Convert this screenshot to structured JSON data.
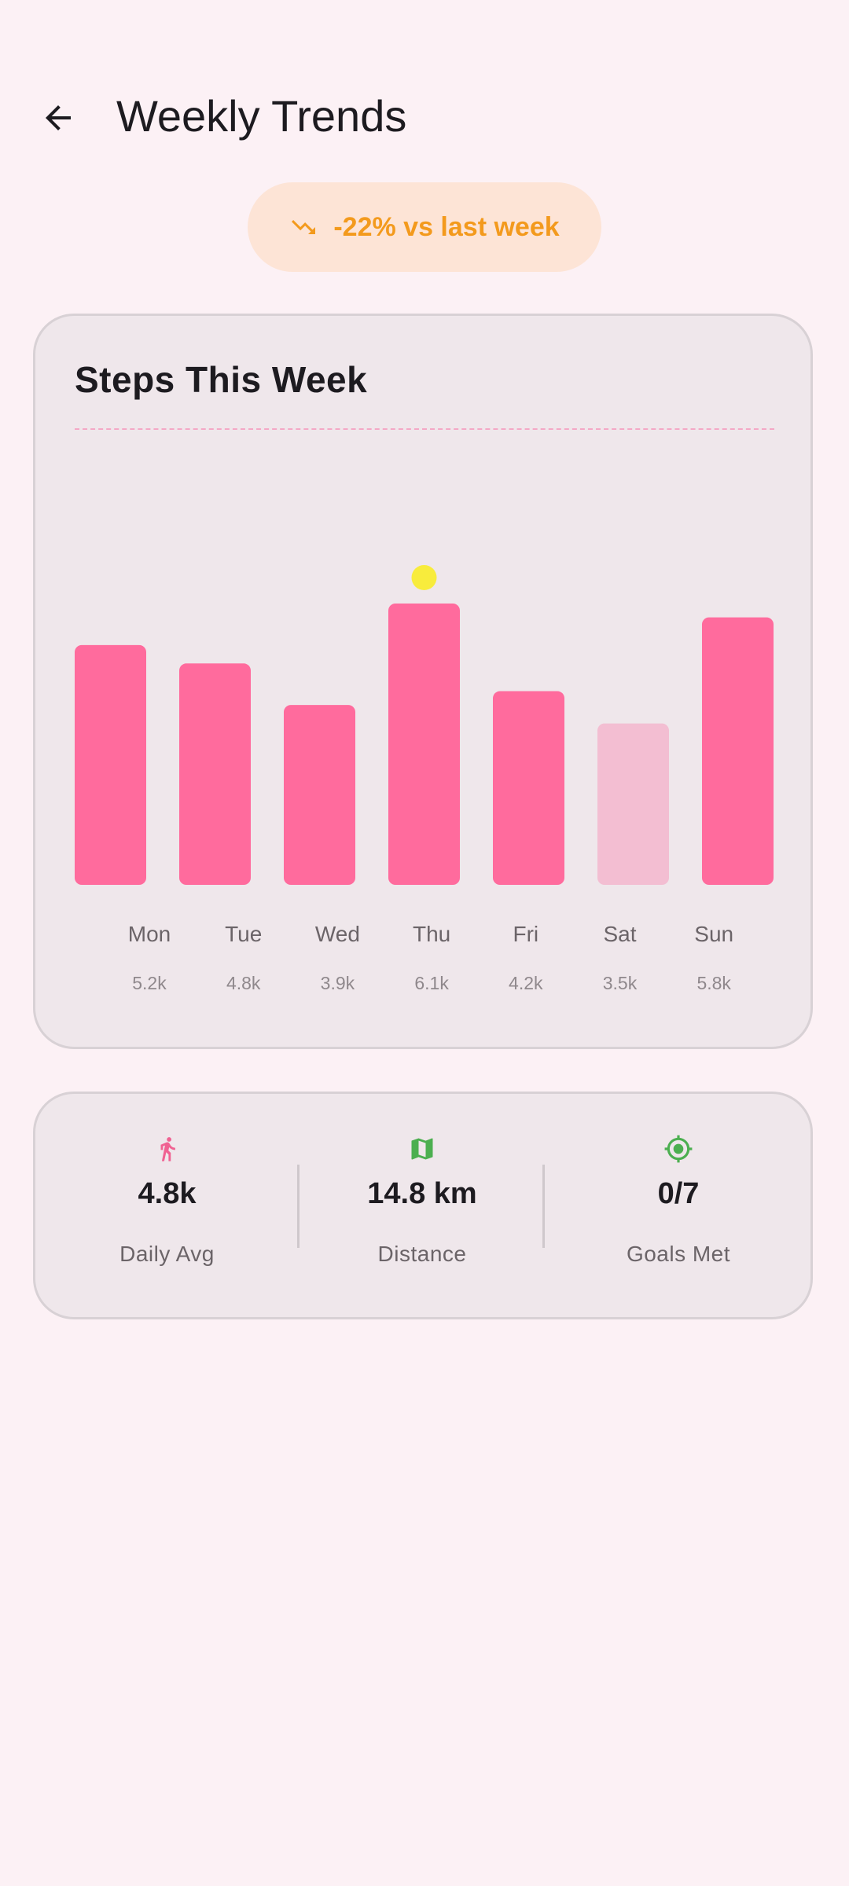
{
  "header": {
    "title": "Weekly Trends",
    "back_icon": "arrow-left-icon"
  },
  "trend": {
    "label": "-22% vs last week",
    "icon": "trending-down-icon",
    "color": "#f39a1d"
  },
  "chart_card": {
    "title": "Steps This Week"
  },
  "chart_data": {
    "type": "bar",
    "title": "Steps This Week",
    "categories": [
      "Mon",
      "Tue",
      "Wed",
      "Thu",
      "Fri",
      "Sat",
      "Sun"
    ],
    "values": [
      5.2,
      4.8,
      3.9,
      6.1,
      4.2,
      3.5,
      5.8
    ],
    "value_labels": [
      "5.2k",
      "4.8k",
      "3.9k",
      "6.1k",
      "4.2k",
      "3.5k",
      "5.8k"
    ],
    "highlight_index": 3,
    "muted_index": 5,
    "colors": {
      "bar": "#ff6b9d",
      "muted": "#f3bed2",
      "highlight_dot": "#f8ec3c"
    },
    "grid": false
  },
  "stats": [
    {
      "icon": "walking-person-icon",
      "icon_color": "#f06292",
      "value": "4.8k",
      "label": "Daily Avg"
    },
    {
      "icon": "map-icon",
      "icon_color": "#4caf50",
      "value": "14.8 km",
      "label": "Distance"
    },
    {
      "icon": "target-icon",
      "icon_color": "#4caf50",
      "value": "0/7",
      "label": "Goals Met"
    }
  ]
}
